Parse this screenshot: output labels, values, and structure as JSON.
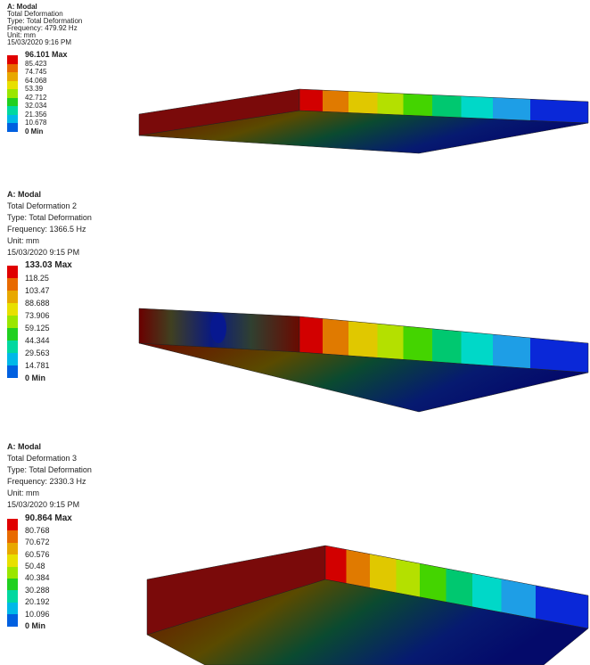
{
  "panels": [
    {
      "header": {
        "title": "A: Modal",
        "result": "Total Deformation",
        "type": "Type: Total Deformation",
        "frequency": "Frequency: 479.92 Hz",
        "unit": "Unit: mm",
        "date": "15/03/2020 9:16 PM"
      },
      "legend": [
        "96.101 Max",
        "85.423",
        "74.745",
        "64.068",
        "53.39",
        "42.712",
        "32.034",
        "21.356",
        "10.678",
        "0 Min"
      ]
    },
    {
      "header": {
        "title": "A: Modal",
        "result": "Total Deformation 2",
        "type": "Type: Total Deformation",
        "frequency": "Frequency: 1366.5 Hz",
        "unit": "Unit: mm",
        "date": "15/03/2020 9:15 PM"
      },
      "legend": [
        "133.03 Max",
        "118.25",
        "103.47",
        "88.688",
        "73.906",
        "59.125",
        "44.344",
        "29.563",
        "14.781",
        "0 Min"
      ]
    },
    {
      "header": {
        "title": "A: Modal",
        "result": "Total Deformation 3",
        "type": "Type: Total Deformation",
        "frequency": "Frequency: 2330.3 Hz",
        "unit": "Unit: mm",
        "date": "15/03/2020 9:15 PM"
      },
      "legend": [
        "90.864 Max",
        "80.768",
        "70.672",
        "60.576",
        "50.48",
        "40.384",
        "30.288",
        "20.192",
        "10.096",
        "0 Min"
      ]
    }
  ]
}
